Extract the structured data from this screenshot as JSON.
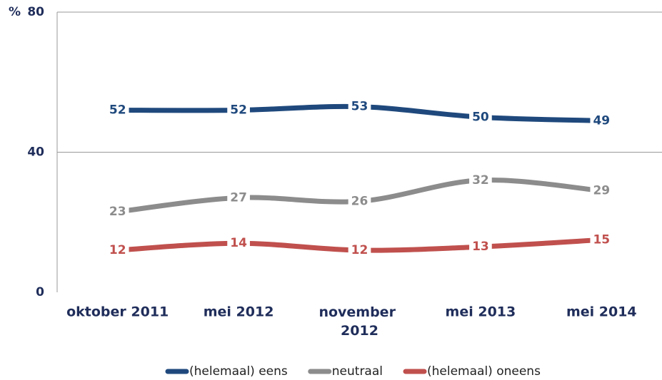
{
  "chart_data": {
    "type": "line",
    "y_label": "%",
    "categories": [
      "oktober 2011",
      "mei 2012",
      "november 2012",
      "mei 2013",
      "mei 2014"
    ],
    "series": [
      {
        "name": "(helemaal) eens",
        "color": "#1f497d",
        "values": [
          52,
          52,
          53,
          50,
          49
        ]
      },
      {
        "name": "neutraal",
        "color": "#8c8c8c",
        "values": [
          23,
          27,
          26,
          32,
          29
        ]
      },
      {
        "name": "(helemaal) oneens",
        "color": "#c0504d",
        "values": [
          12,
          14,
          12,
          13,
          15
        ]
      }
    ],
    "ylim": [
      0,
      80
    ],
    "yticks": [
      0,
      40,
      80
    ],
    "grid": true,
    "legend": "bottom"
  }
}
